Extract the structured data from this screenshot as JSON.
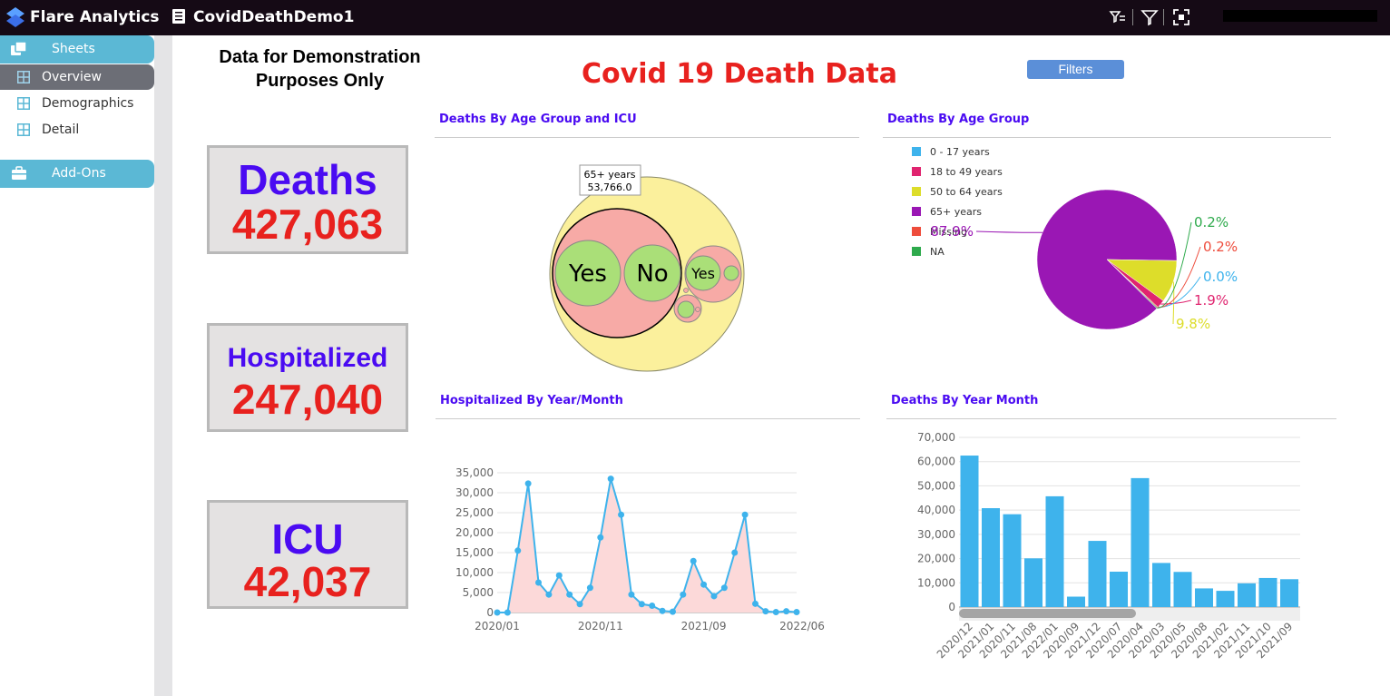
{
  "app": {
    "name": "Flare Analytics",
    "document": "CovidDeathDemo1"
  },
  "sidebar": {
    "sections": [
      {
        "label": "Sheets"
      },
      {
        "label": "Add-Ons"
      }
    ],
    "items": [
      {
        "label": "Overview",
        "active": true
      },
      {
        "label": "Demographics",
        "active": false
      },
      {
        "label": "Detail",
        "active": false
      }
    ]
  },
  "header": {
    "note": "Data for Demonstration Purposes Only",
    "title": "Covid 19 Death Data",
    "filters_label": "Filters"
  },
  "kpis": [
    {
      "label": "Deaths",
      "value": "427,063"
    },
    {
      "label": "Hospitalized",
      "value": "247,040"
    },
    {
      "label": "ICU",
      "value": "42,037"
    }
  ],
  "colors": {
    "accent_purple": "#4a0bf2",
    "accent_red": "#e8211e",
    "bar_blue": "#3eb3ec",
    "sidebar_section": "#5bb8d5"
  },
  "panels": {
    "bubble": {
      "title": "Deaths By Age Group and ICU",
      "tooltip_label": "65+ years",
      "tooltip_value": "53,766.0",
      "labels": [
        "Yes",
        "No",
        "Yes"
      ]
    },
    "pie": {
      "title": "Deaths By Age Group"
    },
    "line": {
      "title": "Hospitalized By Year/Month"
    },
    "bar": {
      "title": "Deaths By Year Month"
    }
  },
  "chart_data": [
    {
      "type": "bubble",
      "title": "Deaths By Age Group and ICU",
      "groups": [
        {
          "name": "65+ years",
          "value": 53766.0,
          "children": [
            "Yes",
            "No"
          ]
        },
        {
          "name": "",
          "children": [
            "Yes"
          ]
        }
      ]
    },
    {
      "type": "pie",
      "title": "Deaths By Age Group",
      "legend": [
        "0 - 17 years",
        "18 to 49 years",
        "50 to 64 years",
        "65+ years",
        "Missing",
        "NA"
      ],
      "legend_position": "top-left",
      "slices": [
        {
          "name": "65+ years",
          "value": 87.9,
          "label": "87.9%",
          "color": "#9a17b4"
        },
        {
          "name": "50 to 64 years",
          "value": 9.8,
          "label": "9.8%",
          "color": "#dddd2a"
        },
        {
          "name": "18 to 49 years",
          "value": 1.9,
          "label": "1.9%",
          "color": "#e0246f"
        },
        {
          "name": "0 - 17 years",
          "value": 0.0,
          "label": "0.0%",
          "color": "#3eb3ec"
        },
        {
          "name": "Missing",
          "value": 0.2,
          "label": "0.2%",
          "color": "#ee4c3c"
        },
        {
          "name": "NA",
          "value": 0.2,
          "label": "0.2%",
          "color": "#2eaa4c"
        }
      ]
    },
    {
      "type": "area",
      "title": "Hospitalized By Year/Month",
      "xticks": [
        "2020/01",
        "2020/11",
        "2021/09",
        "2022/06"
      ],
      "yticks": [
        "0",
        "5,000",
        "10,000",
        "15,000",
        "20,000",
        "25,000",
        "30,000",
        "35,000"
      ],
      "ylim": [
        0,
        35000
      ],
      "values": [
        0,
        0,
        15500,
        32300,
        7500,
        4500,
        9300,
        4500,
        2100,
        6200,
        18800,
        33500,
        24500,
        4500,
        2100,
        1700,
        400,
        200,
        4500,
        12900,
        7000,
        4100,
        6200,
        15000,
        24500,
        2200,
        300,
        100,
        300,
        100
      ],
      "grid": true
    },
    {
      "type": "bar",
      "title": "Deaths By Year Month",
      "categories": [
        "2020/12",
        "2021/01",
        "2020/11",
        "2021/08",
        "2022/01",
        "2020/09",
        "2021/12",
        "2020/07",
        "2020/04",
        "2020/03",
        "2020/05",
        "2020/08",
        "2021/02",
        "2021/11",
        "2021/10",
        "2021/09"
      ],
      "values": [
        62500,
        40800,
        38300,
        20100,
        45700,
        4300,
        27300,
        14600,
        53200,
        18200,
        14500,
        7700,
        6700,
        9800,
        12000,
        11500
      ],
      "yticks": [
        "0",
        "10,000",
        "20,000",
        "30,000",
        "40,000",
        "50,000",
        "60,000",
        "70,000"
      ],
      "ylim": [
        0,
        70000
      ],
      "grid": true
    }
  ]
}
